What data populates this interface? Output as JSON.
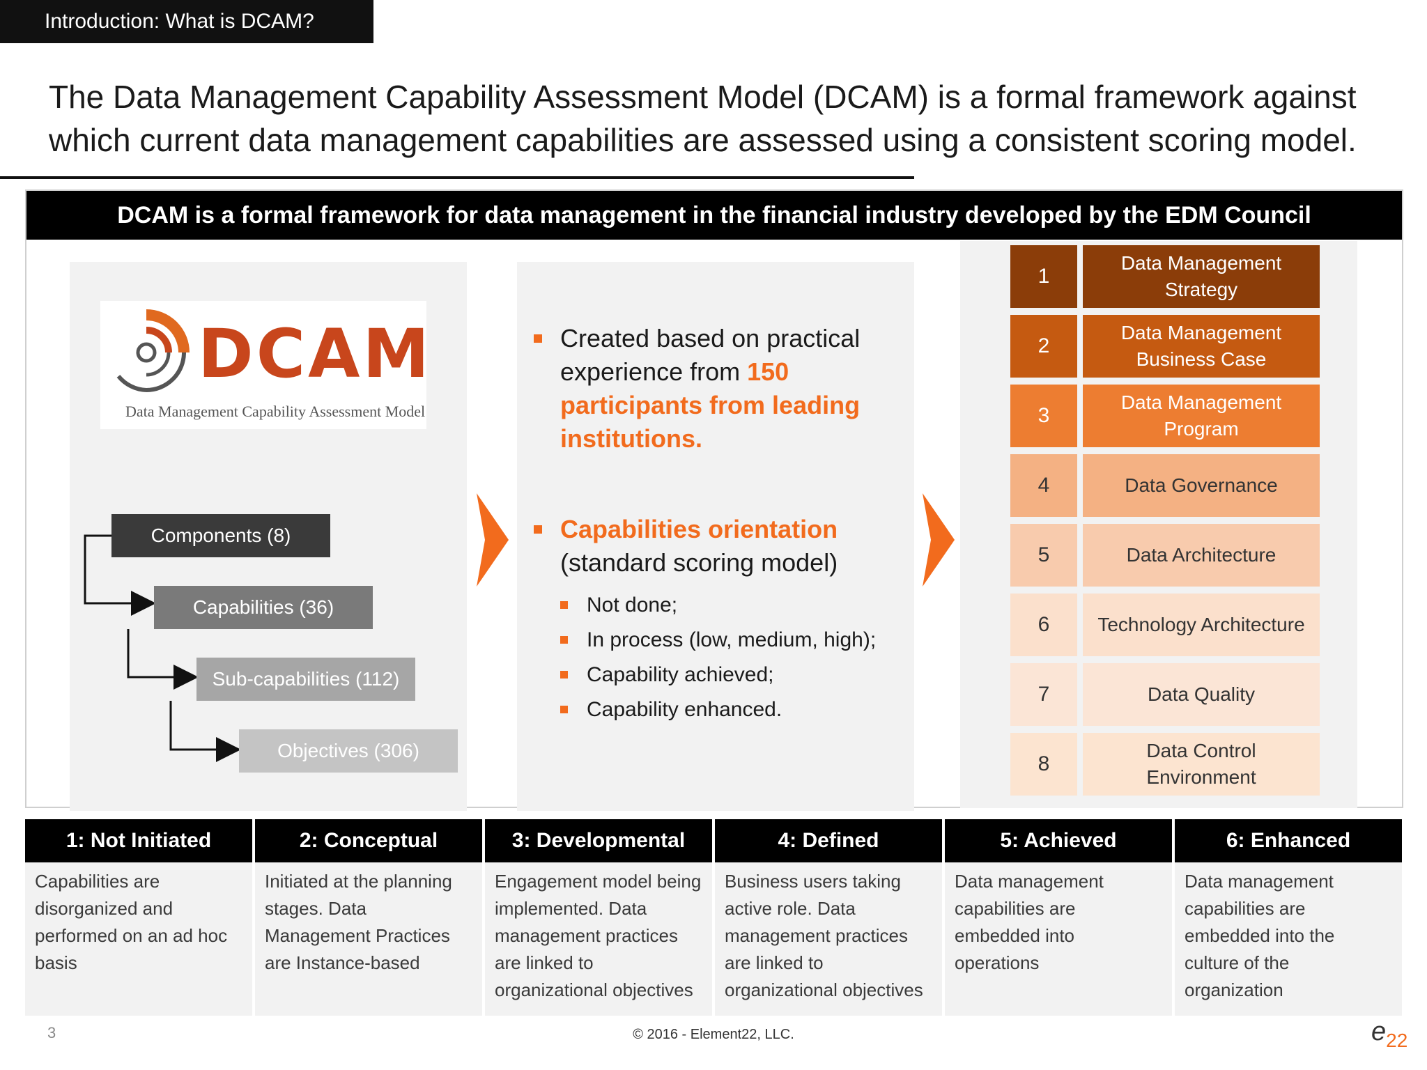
{
  "section_tag": "Introduction: What is DCAM?",
  "headline": "The Data Management Capability Assessment Model (DCAM) is a formal framework against which current data management capabilities are assessed using a consistent scoring model.",
  "banner": "DCAM is a formal framework for data management in the financial industry developed by the EDM Council",
  "logo": {
    "wordmark": "DCAM",
    "subtitle": "Data Management Capability Assessment Model"
  },
  "hierarchy": [
    {
      "label": "Components (8)"
    },
    {
      "label": "Capabilities (36)"
    },
    {
      "label": "Sub-capabilities (112)"
    },
    {
      "label": "Objectives (306)"
    }
  ],
  "bullets": {
    "b1_plain": "Created based on practical experience from ",
    "b1_highlight": "150 participants from leading institutions.",
    "b2_highlight": "Capabilities orientation",
    "b2_plain": "(standard scoring model)",
    "sub_items": [
      "Not done;",
      "In process (low, medium, high);",
      "Capability achieved;",
      "Capability enhanced."
    ]
  },
  "components": [
    {
      "num": "1",
      "label": "Data Management Strategy",
      "num_bg": "#8b3d09",
      "bg": "#8b3d09",
      "fg": "#ffffff"
    },
    {
      "num": "2",
      "label": "Data Management Business Case",
      "num_bg": "#c55a11",
      "bg": "#c55a11",
      "fg": "#ffffff"
    },
    {
      "num": "3",
      "label": "Data Management Program",
      "num_bg": "#ed7d31",
      "bg": "#ed7d31",
      "fg": "#ffffff"
    },
    {
      "num": "4",
      "label": "Data Governance",
      "num_bg": "#f4b183",
      "bg": "#f4b183",
      "fg": "#333333"
    },
    {
      "num": "5",
      "label": "Data Architecture",
      "num_bg": "#f8cbad",
      "bg": "#f8cbad",
      "fg": "#333333"
    },
    {
      "num": "6",
      "label": "Technology Architecture",
      "num_bg": "#fbe0cc",
      "bg": "#fbe0cc",
      "fg": "#333333"
    },
    {
      "num": "7",
      "label": "Data Quality",
      "num_bg": "#fbe5d6",
      "bg": "#fbe5d6",
      "fg": "#333333"
    },
    {
      "num": "8",
      "label": "Data Control Environment",
      "num_bg": "#fce4d0",
      "bg": "#fce4d0",
      "fg": "#333333"
    }
  ],
  "stages": [
    {
      "title": "1: Not Initiated",
      "desc": "Capabilities are disorganized and performed on an ad hoc basis"
    },
    {
      "title": "2: Conceptual",
      "desc": "Initiated at the planning stages. Data Management Practices are Instance-based"
    },
    {
      "title": "3: Developmental",
      "desc": "Engagement model being implemented. Data management practices are linked to organizational objectives"
    },
    {
      "title": "4: Defined",
      "desc": "Business users taking active role. Data management practices are linked to organizational objectives"
    },
    {
      "title": "5: Achieved",
      "desc": "Data management capabilities are embedded into operations"
    },
    {
      "title": "6: Enhanced",
      "desc": "Data management capabilities are embedded into the culture of the organization"
    }
  ],
  "footer": {
    "page": "3",
    "copyright": "© 2016 - Element22, LLC.",
    "brand_e": "e",
    "brand_num": "22"
  },
  "colors": {
    "accent": "#f26b1d",
    "logo": "#c8461c"
  }
}
